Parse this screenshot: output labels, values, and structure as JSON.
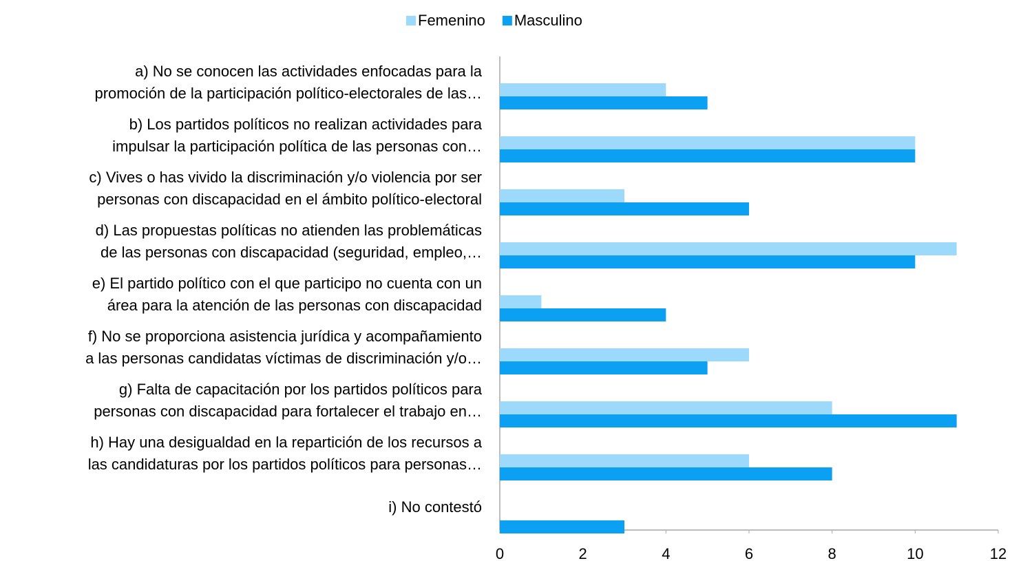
{
  "chart_data": {
    "type": "bar",
    "orientation": "horizontal",
    "categories": [
      [
        "a) No se conocen las actividades enfocadas para la",
        "promoción de la participación político-electorales de las…"
      ],
      [
        "b) Los partidos políticos no realizan actividades para",
        "impulsar la participación política de las personas con…"
      ],
      [
        "c) Vives o has vivido la discriminación y/o violencia por ser",
        "personas con discapacidad en el ámbito político-electoral"
      ],
      [
        "d) Las propuestas políticas no atienden las problemáticas",
        "de las personas con discapacidad (seguridad, empleo,…"
      ],
      [
        "e) El partido político con el que participo no cuenta con un",
        "área para la atención de las personas con discapacidad"
      ],
      [
        "f) No se proporciona asistencia jurídica y acompañamiento",
        "a las personas candidatas víctimas de discriminación y/o…"
      ],
      [
        "g) Falta de capacitación por los partidos políticos para",
        "personas con discapacidad para fortalecer el trabajo en…"
      ],
      [
        "h) Hay una desigualdad en la repartición de los recursos a",
        "las candidaturas por los partidos políticos para personas…"
      ],
      [
        "i) No contestó"
      ]
    ],
    "series": [
      {
        "name": "Femenino",
        "color": "#9dd9fb",
        "values": [
          4,
          10,
          3,
          11,
          1,
          6,
          8,
          6,
          0
        ]
      },
      {
        "name": "Masculino",
        "color": "#0ca0f2",
        "values": [
          5,
          10,
          6,
          10,
          4,
          5,
          11,
          8,
          3
        ]
      }
    ],
    "xlim": [
      0,
      12
    ],
    "xticks": [
      0,
      2,
      4,
      6,
      8,
      10,
      12
    ],
    "grid": false,
    "legend": "top"
  }
}
